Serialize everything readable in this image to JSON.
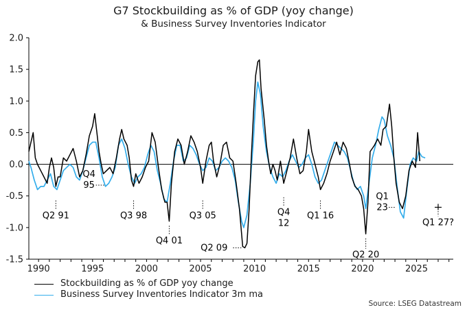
{
  "title": "G7 Stockbuilding as % of GDP (yoy change)",
  "subtitle": "& Business Survey Inventories Indicator",
  "source": "Source: LSEG Datastream",
  "chart_data": {
    "type": "line",
    "ylim": [
      -1.5,
      2.0
    ],
    "xlim": [
      1989.1,
      2028.4
    ],
    "y_ticks": [
      "2.0",
      "1.5",
      "1.0",
      "0.5",
      "0.0",
      "-0.5",
      "-1.0",
      "-1.5"
    ],
    "x_ticks": [
      "1990",
      "1995",
      "2000",
      "2005",
      "2010",
      "2015",
      "2020",
      "2025"
    ],
    "series": [
      {
        "name": "Stockbuilding as % of GDP yoy change",
        "color": "#000000",
        "points": [
          [
            1989.1,
            0.2
          ],
          [
            1989.3,
            0.35
          ],
          [
            1989.5,
            0.5
          ],
          [
            1989.7,
            0.1
          ],
          [
            1989.9,
            0.0
          ],
          [
            1990.2,
            -0.1
          ],
          [
            1990.5,
            -0.2
          ],
          [
            1990.8,
            -0.3
          ],
          [
            1991.0,
            -0.05
          ],
          [
            1991.2,
            0.1
          ],
          [
            1991.4,
            -0.05
          ],
          [
            1991.6,
            -0.35
          ],
          [
            1991.8,
            -0.2
          ],
          [
            1992.0,
            -0.2
          ],
          [
            1992.3,
            0.1
          ],
          [
            1992.6,
            0.05
          ],
          [
            1992.9,
            0.15
          ],
          [
            1993.2,
            0.25
          ],
          [
            1993.5,
            0.05
          ],
          [
            1993.8,
            -0.2
          ],
          [
            1994.1,
            -0.1
          ],
          [
            1994.4,
            0.15
          ],
          [
            1994.7,
            0.45
          ],
          [
            1995.0,
            0.6
          ],
          [
            1995.2,
            0.8
          ],
          [
            1995.4,
            0.5
          ],
          [
            1995.6,
            0.2
          ],
          [
            1995.8,
            0.0
          ],
          [
            1996.0,
            -0.15
          ],
          [
            1996.3,
            -0.1
          ],
          [
            1996.6,
            -0.05
          ],
          [
            1996.9,
            -0.15
          ],
          [
            1997.2,
            0.1
          ],
          [
            1997.5,
            0.4
          ],
          [
            1997.7,
            0.55
          ],
          [
            1997.9,
            0.4
          ],
          [
            1998.2,
            0.3
          ],
          [
            1998.4,
            0.1
          ],
          [
            1998.6,
            -0.25
          ],
          [
            1998.8,
            -0.35
          ],
          [
            1999.0,
            -0.15
          ],
          [
            1999.3,
            -0.3
          ],
          [
            1999.6,
            -0.2
          ],
          [
            1999.9,
            -0.05
          ],
          [
            2000.2,
            0.05
          ],
          [
            2000.5,
            0.5
          ],
          [
            2000.8,
            0.35
          ],
          [
            2001.1,
            -0.05
          ],
          [
            2001.4,
            -0.4
          ],
          [
            2001.7,
            -0.6
          ],
          [
            2001.9,
            -0.6
          ],
          [
            2002.1,
            -0.9
          ],
          [
            2002.3,
            -0.3
          ],
          [
            2002.6,
            0.2
          ],
          [
            2002.9,
            0.4
          ],
          [
            2003.2,
            0.3
          ],
          [
            2003.5,
            0.0
          ],
          [
            2003.8,
            0.2
          ],
          [
            2004.1,
            0.45
          ],
          [
            2004.4,
            0.35
          ],
          [
            2004.7,
            0.2
          ],
          [
            2005.0,
            -0.05
          ],
          [
            2005.2,
            -0.3
          ],
          [
            2005.5,
            0.05
          ],
          [
            2005.8,
            0.3
          ],
          [
            2006.0,
            0.35
          ],
          [
            2006.2,
            0.05
          ],
          [
            2006.5,
            -0.2
          ],
          [
            2006.8,
            0.0
          ],
          [
            2007.1,
            0.3
          ],
          [
            2007.4,
            0.35
          ],
          [
            2007.7,
            0.1
          ],
          [
            2008.0,
            0.05
          ],
          [
            2008.3,
            -0.3
          ],
          [
            2008.6,
            -0.7
          ],
          [
            2008.9,
            -1.3
          ],
          [
            2009.1,
            -1.32
          ],
          [
            2009.3,
            -1.25
          ],
          [
            2009.5,
            -0.7
          ],
          [
            2009.7,
            0.1
          ],
          [
            2009.9,
            0.8
          ],
          [
            2010.1,
            1.4
          ],
          [
            2010.3,
            1.62
          ],
          [
            2010.45,
            1.65
          ],
          [
            2010.6,
            1.2
          ],
          [
            2010.9,
            0.7
          ],
          [
            2011.1,
            0.3
          ],
          [
            2011.3,
            0.05
          ],
          [
            2011.5,
            -0.15
          ],
          [
            2011.7,
            0.0
          ],
          [
            2011.9,
            -0.1
          ],
          [
            2012.1,
            -0.25
          ],
          [
            2012.4,
            0.05
          ],
          [
            2012.7,
            -0.3
          ],
          [
            2013.0,
            -0.1
          ],
          [
            2013.3,
            0.1
          ],
          [
            2013.6,
            0.4
          ],
          [
            2013.9,
            0.1
          ],
          [
            2014.2,
            -0.15
          ],
          [
            2014.5,
            -0.1
          ],
          [
            2014.8,
            0.2
          ],
          [
            2015.0,
            0.55
          ],
          [
            2015.3,
            0.2
          ],
          [
            2015.6,
            0.0
          ],
          [
            2015.9,
            -0.2
          ],
          [
            2016.1,
            -0.4
          ],
          [
            2016.4,
            -0.3
          ],
          [
            2016.7,
            -0.15
          ],
          [
            2017.0,
            0.05
          ],
          [
            2017.3,
            0.2
          ],
          [
            2017.6,
            0.35
          ],
          [
            2017.9,
            0.15
          ],
          [
            2018.2,
            0.35
          ],
          [
            2018.5,
            0.25
          ],
          [
            2018.8,
            0.0
          ],
          [
            2019.0,
            -0.2
          ],
          [
            2019.3,
            -0.35
          ],
          [
            2019.6,
            -0.4
          ],
          [
            2019.9,
            -0.5
          ],
          [
            2020.1,
            -0.7
          ],
          [
            2020.3,
            -1.1
          ],
          [
            2020.5,
            -0.6
          ],
          [
            2020.7,
            0.2
          ],
          [
            2020.9,
            0.25
          ],
          [
            2021.1,
            0.3
          ],
          [
            2021.4,
            0.4
          ],
          [
            2021.7,
            0.3
          ],
          [
            2021.9,
            0.55
          ],
          [
            2022.2,
            0.6
          ],
          [
            2022.5,
            0.95
          ],
          [
            2022.7,
            0.6
          ],
          [
            2022.9,
            0.1
          ],
          [
            2023.1,
            -0.3
          ],
          [
            2023.4,
            -0.6
          ],
          [
            2023.7,
            -0.7
          ],
          [
            2024.0,
            -0.5
          ],
          [
            2024.3,
            -0.1
          ],
          [
            2024.6,
            0.05
          ],
          [
            2024.9,
            -0.05
          ],
          [
            2025.1,
            0.5
          ],
          [
            2025.3,
            0.05
          ]
        ]
      },
      {
        "name": "Business Survey Inventories Indicator 3m ma",
        "color": "#33ADEB",
        "points": [
          [
            1989.1,
            0.05
          ],
          [
            1989.3,
            -0.05
          ],
          [
            1989.6,
            -0.25
          ],
          [
            1989.9,
            -0.4
          ],
          [
            1990.2,
            -0.35
          ],
          [
            1990.5,
            -0.35
          ],
          [
            1990.8,
            -0.25
          ],
          [
            1991.1,
            -0.15
          ],
          [
            1991.4,
            -0.35
          ],
          [
            1991.7,
            -0.4
          ],
          [
            1992.0,
            -0.25
          ],
          [
            1992.3,
            -0.1
          ],
          [
            1992.6,
            -0.05
          ],
          [
            1992.9,
            0.0
          ],
          [
            1993.2,
            -0.05
          ],
          [
            1993.5,
            -0.2
          ],
          [
            1993.8,
            -0.25
          ],
          [
            1994.1,
            -0.1
          ],
          [
            1994.4,
            0.1
          ],
          [
            1994.7,
            0.3
          ],
          [
            1995.0,
            0.35
          ],
          [
            1995.3,
            0.35
          ],
          [
            1995.6,
            0.1
          ],
          [
            1995.9,
            -0.2
          ],
          [
            1996.2,
            -0.35
          ],
          [
            1996.5,
            -0.3
          ],
          [
            1996.8,
            -0.2
          ],
          [
            1997.1,
            -0.05
          ],
          [
            1997.4,
            0.3
          ],
          [
            1997.7,
            0.4
          ],
          [
            1998.0,
            0.25
          ],
          [
            1998.3,
            0.0
          ],
          [
            1998.6,
            -0.2
          ],
          [
            1998.9,
            -0.3
          ],
          [
            1999.2,
            -0.2
          ],
          [
            1999.5,
            -0.15
          ],
          [
            1999.8,
            -0.05
          ],
          [
            2000.1,
            0.15
          ],
          [
            2000.4,
            0.3
          ],
          [
            2000.7,
            0.2
          ],
          [
            2001.0,
            -0.1
          ],
          [
            2001.3,
            -0.3
          ],
          [
            2001.6,
            -0.55
          ],
          [
            2001.9,
            -0.6
          ],
          [
            2002.2,
            -0.3
          ],
          [
            2002.5,
            0.05
          ],
          [
            2002.8,
            0.3
          ],
          [
            2003.1,
            0.3
          ],
          [
            2003.4,
            0.05
          ],
          [
            2003.7,
            0.1
          ],
          [
            2004.0,
            0.3
          ],
          [
            2004.3,
            0.25
          ],
          [
            2004.6,
            0.15
          ],
          [
            2004.9,
            0.0
          ],
          [
            2005.2,
            -0.1
          ],
          [
            2005.5,
            -0.05
          ],
          [
            2005.8,
            0.1
          ],
          [
            2006.1,
            0.05
          ],
          [
            2006.4,
            -0.1
          ],
          [
            2006.7,
            -0.05
          ],
          [
            2007.0,
            0.05
          ],
          [
            2007.3,
            0.1
          ],
          [
            2007.6,
            0.05
          ],
          [
            2007.9,
            -0.05
          ],
          [
            2008.2,
            -0.25
          ],
          [
            2008.5,
            -0.6
          ],
          [
            2008.8,
            -0.9
          ],
          [
            2009.0,
            -1.0
          ],
          [
            2009.3,
            -0.8
          ],
          [
            2009.6,
            -0.3
          ],
          [
            2009.9,
            0.4
          ],
          [
            2010.1,
            1.0
          ],
          [
            2010.3,
            1.3
          ],
          [
            2010.55,
            1.1
          ],
          [
            2010.8,
            0.6
          ],
          [
            2011.1,
            0.2
          ],
          [
            2011.4,
            -0.05
          ],
          [
            2011.7,
            -0.2
          ],
          [
            2012.0,
            -0.3
          ],
          [
            2012.3,
            -0.15
          ],
          [
            2012.6,
            -0.2
          ],
          [
            2012.9,
            -0.1
          ],
          [
            2013.2,
            0.05
          ],
          [
            2013.5,
            0.15
          ],
          [
            2013.8,
            0.05
          ],
          [
            2014.1,
            -0.05
          ],
          [
            2014.4,
            0.0
          ],
          [
            2014.7,
            0.1
          ],
          [
            2015.0,
            0.15
          ],
          [
            2015.3,
            0.0
          ],
          [
            2015.6,
            -0.2
          ],
          [
            2015.9,
            -0.3
          ],
          [
            2016.2,
            -0.25
          ],
          [
            2016.5,
            -0.1
          ],
          [
            2016.8,
            0.05
          ],
          [
            2017.1,
            0.2
          ],
          [
            2017.4,
            0.35
          ],
          [
            2017.7,
            0.3
          ],
          [
            2018.0,
            0.25
          ],
          [
            2018.3,
            0.2
          ],
          [
            2018.6,
            0.1
          ],
          [
            2018.9,
            -0.1
          ],
          [
            2019.2,
            -0.3
          ],
          [
            2019.5,
            -0.4
          ],
          [
            2019.8,
            -0.35
          ],
          [
            2020.1,
            -0.5
          ],
          [
            2020.3,
            -0.7
          ],
          [
            2020.6,
            -0.3
          ],
          [
            2020.9,
            0.1
          ],
          [
            2021.2,
            0.3
          ],
          [
            2021.5,
            0.55
          ],
          [
            2021.8,
            0.75
          ],
          [
            2022.0,
            0.7
          ],
          [
            2022.3,
            0.45
          ],
          [
            2022.6,
            0.3
          ],
          [
            2022.9,
            0.1
          ],
          [
            2023.2,
            -0.35
          ],
          [
            2023.5,
            -0.75
          ],
          [
            2023.8,
            -0.85
          ],
          [
            2024.1,
            -0.4
          ],
          [
            2024.4,
            0.0
          ],
          [
            2024.7,
            0.1
          ],
          [
            2025.0,
            0.05
          ],
          [
            2025.2,
            0.2
          ],
          [
            2025.5,
            0.12
          ],
          [
            2025.8,
            0.1
          ]
        ]
      }
    ],
    "annotations": [
      {
        "label": [
          "Q2 91"
        ],
        "x": 1991.6,
        "y": -0.55,
        "color": "#000000"
      },
      {
        "label": [
          "Q4",
          "95"
        ],
        "x": 1996.2,
        "y": -0.33,
        "color": "#000000"
      },
      {
        "label": [
          "Q3 98"
        ],
        "x": 1998.8,
        "y": -0.55,
        "color": "#000000"
      },
      {
        "label": [
          "Q4 01"
        ],
        "x": 2002.1,
        "y": -0.95,
        "color": "#000000"
      },
      {
        "label": [
          "Q3 05"
        ],
        "x": 2005.2,
        "y": -0.55,
        "color": "#000000"
      },
      {
        "label": [
          "Q2 09"
        ],
        "x": 2008.9,
        "y": -1.32,
        "color": "#000000"
      },
      {
        "label": [
          "Q4",
          "12"
        ],
        "x": 2012.7,
        "y": -0.5,
        "color": "#000000"
      },
      {
        "label": [
          "Q1 16"
        ],
        "x": 2016.1,
        "y": -0.55,
        "color": "#000000"
      },
      {
        "label": [
          "Q2 20"
        ],
        "x": 2020.3,
        "y": -1.15,
        "color": "#000000"
      },
      {
        "label": [
          "Q1",
          "23"
        ],
        "x": 2023.1,
        "y": -0.68,
        "color": "#000000"
      },
      {
        "label": [
          "Q1 27?"
        ],
        "x": 2027.0,
        "y": -0.68,
        "color": "#000000"
      }
    ]
  }
}
